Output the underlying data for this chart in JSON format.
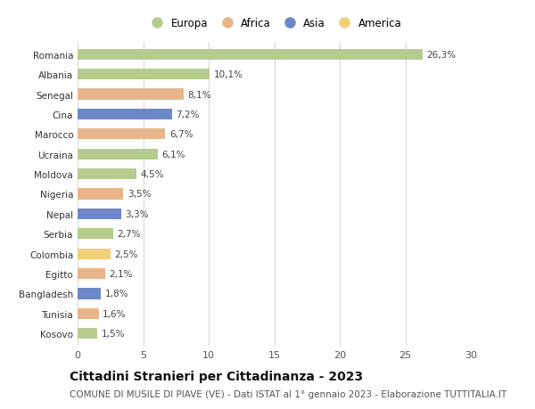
{
  "countries": [
    "Romania",
    "Albania",
    "Senegal",
    "Cina",
    "Marocco",
    "Ucraina",
    "Moldova",
    "Nigeria",
    "Nepal",
    "Serbia",
    "Colombia",
    "Egitto",
    "Bangladesh",
    "Tunisia",
    "Kosovo"
  ],
  "values": [
    26.3,
    10.1,
    8.1,
    7.2,
    6.7,
    6.1,
    4.5,
    3.5,
    3.3,
    2.7,
    2.5,
    2.1,
    1.8,
    1.6,
    1.5
  ],
  "labels": [
    "26,3%",
    "10,1%",
    "8,1%",
    "7,2%",
    "6,7%",
    "6,1%",
    "4,5%",
    "3,5%",
    "3,3%",
    "2,7%",
    "2,5%",
    "2,1%",
    "1,8%",
    "1,6%",
    "1,5%"
  ],
  "continents": [
    "Europa",
    "Europa",
    "Africa",
    "Asia",
    "Africa",
    "Europa",
    "Europa",
    "Africa",
    "Asia",
    "Europa",
    "America",
    "Africa",
    "Asia",
    "Africa",
    "Europa"
  ],
  "continent_colors": {
    "Europa": "#b5cc8e",
    "Africa": "#e8b48a",
    "Asia": "#6e87c8",
    "America": "#f2d07a"
  },
  "legend_order": [
    "Europa",
    "Africa",
    "Asia",
    "America"
  ],
  "xlim": [
    0,
    30
  ],
  "xticks": [
    0,
    5,
    10,
    15,
    20,
    25,
    30
  ],
  "title": "Cittadini Stranieri per Cittadinanza - 2023",
  "subtitle": "COMUNE DI MUSILE DI PIAVE (VE) - Dati ISTAT al 1° gennaio 2023 - Elaborazione TUTTITALIA.IT",
  "bg_color": "#ffffff",
  "grid_color": "#d8d8d8",
  "bar_height": 0.55,
  "title_fontsize": 10,
  "subtitle_fontsize": 7.5,
  "label_fontsize": 7.5,
  "ytick_fontsize": 7.5,
  "xtick_fontsize": 8
}
